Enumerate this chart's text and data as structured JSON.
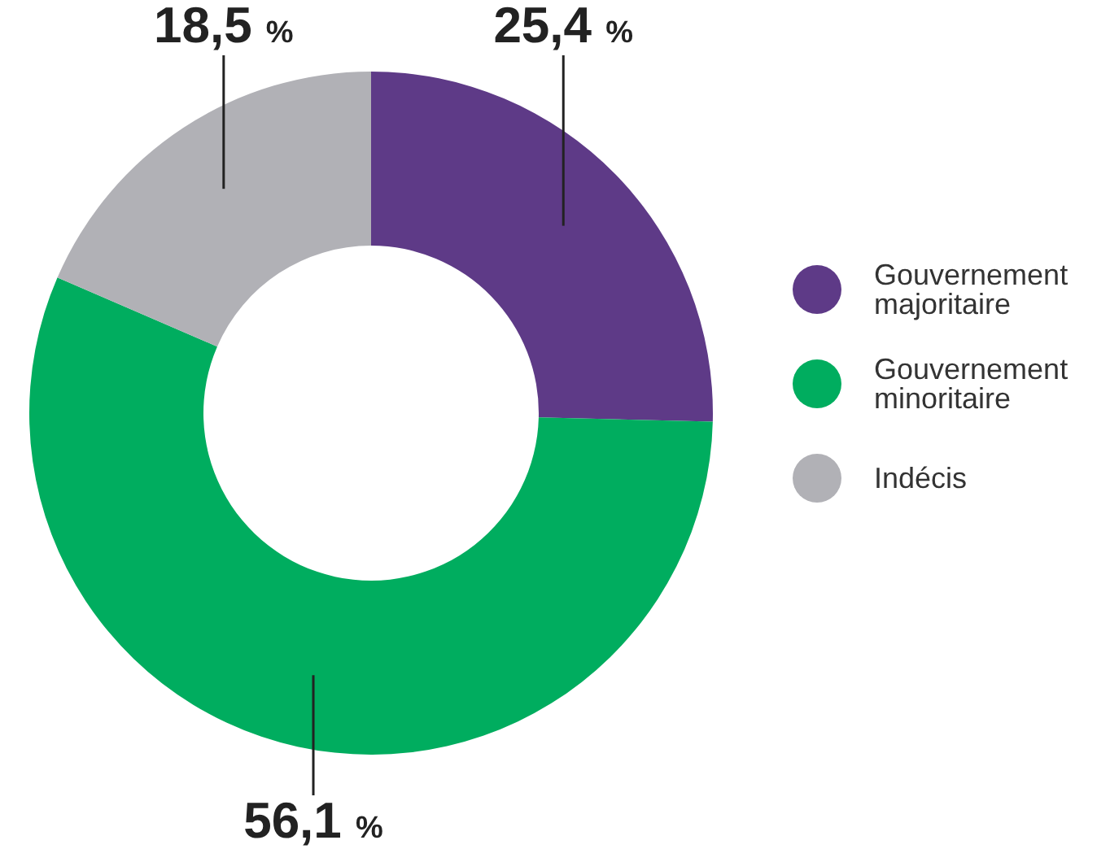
{
  "chart_data": {
    "type": "donut",
    "categories": [
      "Gouvernement majoritaire",
      "Gouvernement minoritaire",
      "Indécis"
    ],
    "values": [
      25.4,
      56.1,
      18.5
    ],
    "colors": [
      "#5e3a87",
      "#00ad5f",
      "#b1b1b6"
    ],
    "value_labels": [
      "25,4 %",
      "56,1 %",
      "18,5 %"
    ],
    "legend": "right"
  }
}
